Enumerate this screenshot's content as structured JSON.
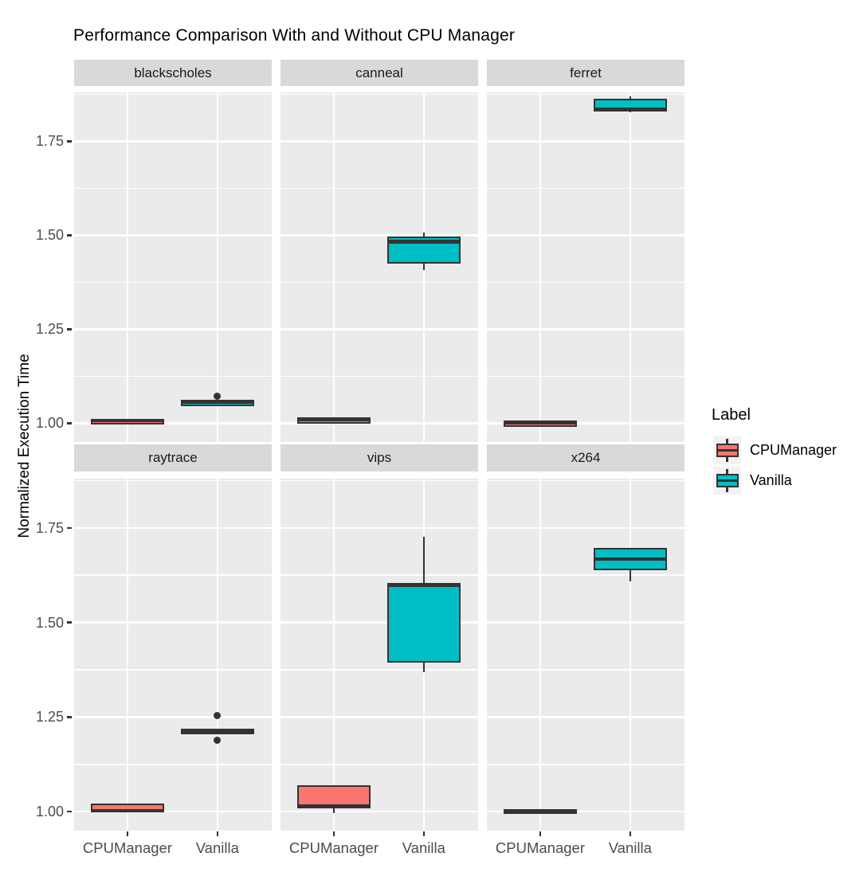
{
  "title": "Performance Comparison With and Without CPU Manager",
  "y_axis_title": "Normalized Execution Time",
  "legend": {
    "title": "Label",
    "entries": [
      {
        "label": "CPUManager",
        "color": "#F8766D"
      },
      {
        "label": "Vanilla",
        "color": "#00BFC4"
      }
    ]
  },
  "colors": {
    "cpumanager_fill": "#F8766D",
    "vanilla_fill": "#00BFC4",
    "box_stroke": "#333333",
    "panel_bg": "#EBEBEB",
    "strip_bg": "#D9D9D9",
    "gridline": "#FFFFFF",
    "axis_text": "#4D4D4D",
    "legend_key_bg": "#F2F2F2"
  },
  "chart_data": {
    "type": "boxplot",
    "title": "Performance Comparison With and Without CPU Manager",
    "ylabel": "Normalized Execution Time",
    "categories": [
      "CPUManager",
      "Vanilla"
    ],
    "facet_grid": [
      [
        "blackscholes",
        "canneal",
        "ferret"
      ],
      [
        "raytrace",
        "vips",
        "x264"
      ]
    ],
    "ylim": [
      0.95,
      1.88
    ],
    "yticks": [
      1.0,
      1.25,
      1.5,
      1.75
    ],
    "ytick_labels": [
      "1.00",
      "1.25",
      "1.50",
      "1.75"
    ],
    "yminor": [
      1.125,
      1.375,
      1.625,
      1.875
    ],
    "grid": "on",
    "legend_position": "right",
    "facets": [
      {
        "name": "blackscholes",
        "row": 0,
        "col": 0,
        "boxes": [
          {
            "group": "CPUManager",
            "color": "#F8766D",
            "low": 1.004,
            "q1": 1.004,
            "median": 1.007,
            "q3": 1.01,
            "high": 1.01,
            "outliers": []
          },
          {
            "group": "Vanilla",
            "color": "#00BFC4",
            "low": 1.053,
            "q1": 1.053,
            "median": 1.057,
            "q3": 1.06,
            "high": 1.06,
            "outliers": [
              1.072
            ]
          }
        ]
      },
      {
        "name": "canneal",
        "row": 0,
        "col": 1,
        "boxes": [
          {
            "group": "CPUManager",
            "color": "#F8766D",
            "low": 0.999,
            "q1": 0.999,
            "median": 1.009,
            "q3": 1.016,
            "high": 1.016,
            "outliers": []
          },
          {
            "group": "Vanilla",
            "color": "#00BFC4",
            "low": 1.408,
            "q1": 1.425,
            "median": 1.483,
            "q3": 1.497,
            "high": 1.507,
            "outliers": []
          }
        ]
      },
      {
        "name": "ferret",
        "row": 0,
        "col": 2,
        "boxes": [
          {
            "group": "CPUManager",
            "color": "#F8766D",
            "low": 0.999,
            "q1": 0.999,
            "median": 1.002,
            "q3": 1.005,
            "high": 1.005,
            "outliers": []
          },
          {
            "group": "Vanilla",
            "color": "#00BFC4",
            "low": 1.826,
            "q1": 1.831,
            "median": 1.834,
            "q3": 1.862,
            "high": 1.869,
            "outliers": []
          }
        ]
      },
      {
        "name": "raytrace",
        "row": 1,
        "col": 0,
        "boxes": [
          {
            "group": "CPUManager",
            "color": "#F8766D",
            "low": 0.998,
            "q1": 1.0,
            "median": 1.003,
            "q3": 1.022,
            "high": 1.022,
            "outliers": []
          },
          {
            "group": "Vanilla",
            "color": "#00BFC4",
            "low": 1.21,
            "q1": 1.21,
            "median": 1.214,
            "q3": 1.218,
            "high": 1.218,
            "outliers": [
              1.254,
              1.188
            ]
          }
        ]
      },
      {
        "name": "vips",
        "row": 1,
        "col": 1,
        "boxes": [
          {
            "group": "CPUManager",
            "color": "#F8766D",
            "low": 0.997,
            "q1": 1.011,
            "median": 1.014,
            "q3": 1.07,
            "high": 1.07,
            "outliers": []
          },
          {
            "group": "Vanilla",
            "color": "#00BFC4",
            "low": 1.368,
            "q1": 1.394,
            "median": 1.598,
            "q3": 1.605,
            "high": 1.727,
            "outliers": []
          }
        ]
      },
      {
        "name": "x264",
        "row": 1,
        "col": 2,
        "boxes": [
          {
            "group": "CPUManager",
            "color": "#F8766D",
            "low": 0.999,
            "q1": 0.999,
            "median": 1.003,
            "q3": 1.007,
            "high": 1.007,
            "outliers": []
          },
          {
            "group": "Vanilla",
            "color": "#00BFC4",
            "low": 1.609,
            "q1": 1.638,
            "median": 1.667,
            "q3": 1.697,
            "high": 1.697,
            "outliers": []
          }
        ]
      }
    ]
  }
}
